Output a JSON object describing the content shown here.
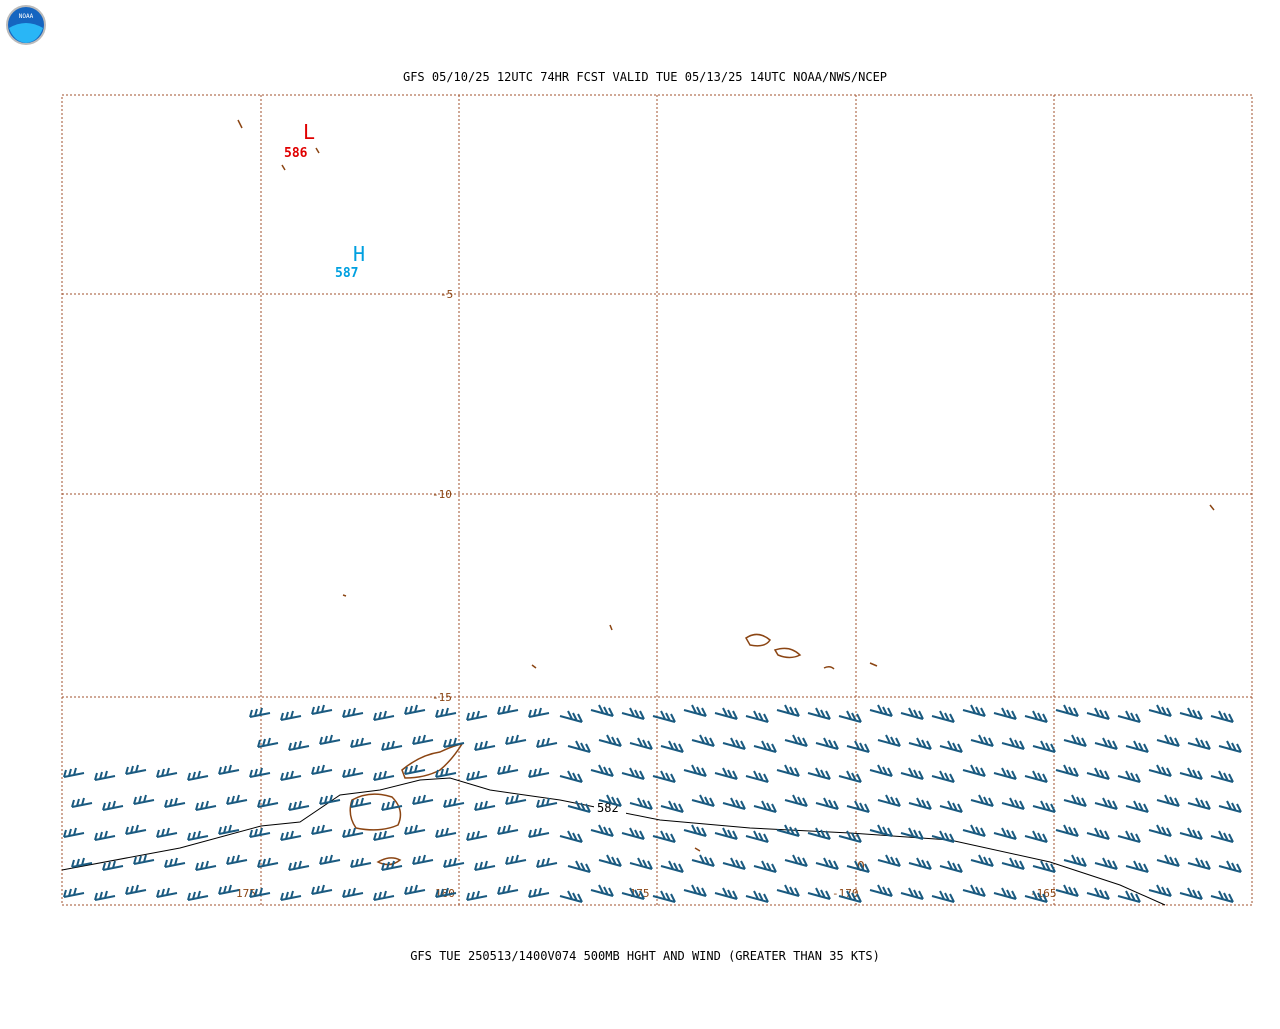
{
  "header": {
    "title": "GFS 05/10/25 12UTC 74HR FCST VALID TUE 05/13/25 14UTC NOAA/NWS/NCEP",
    "logo": "NOAA"
  },
  "grid": {
    "lat_labels": [
      "-5",
      "-10",
      "-15"
    ],
    "lon_labels": [
      "175",
      "180",
      "-175",
      "-170",
      "-165"
    ]
  },
  "centers": [
    {
      "symbol": "L",
      "value": "586"
    },
    {
      "symbol": "H",
      "value": "587"
    }
  ],
  "contour": {
    "label": "582",
    "extra": "0"
  },
  "footer": {
    "caption": "GFS TUE 250513/1400V074 500MB HGHT AND WIND (GREATER THAN 35 KTS)"
  }
}
